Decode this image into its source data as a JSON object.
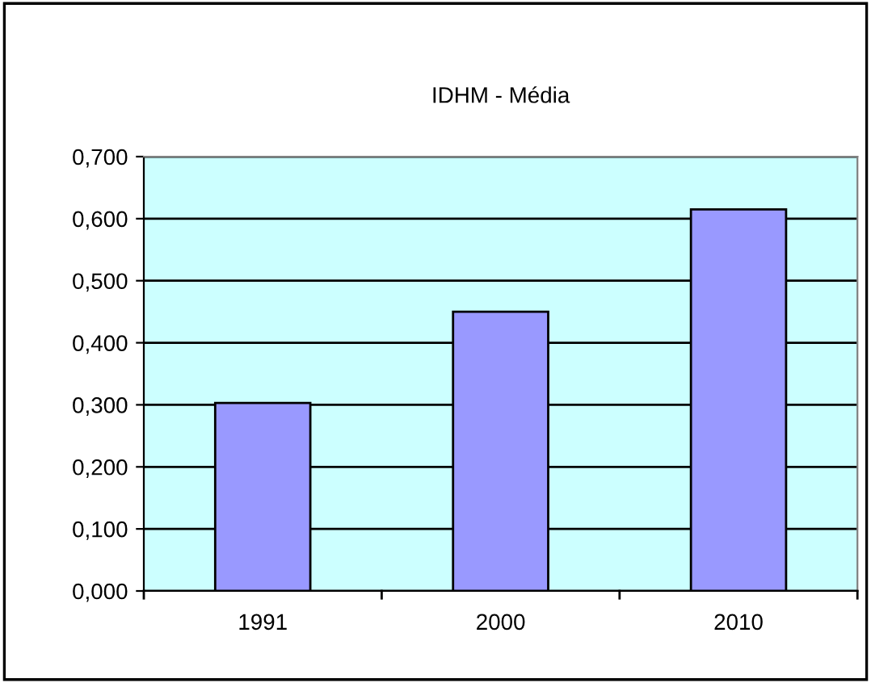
{
  "chart_data": {
    "type": "bar",
    "title": "IDHM - Média",
    "categories": [
      "1991",
      "2000",
      "2010"
    ],
    "values": [
      0.303,
      0.45,
      0.615
    ],
    "color": "#9999ff",
    "ylim": [
      0,
      0.7
    ],
    "yticks": [
      {
        "value": 0,
        "label": "0,000"
      },
      {
        "value": 0.1,
        "label": "0,100"
      },
      {
        "value": 0.2,
        "label": "0,200"
      },
      {
        "value": 0.3,
        "label": "0,300"
      },
      {
        "value": 0.4,
        "label": "0,400"
      },
      {
        "value": 0.5,
        "label": "0,500"
      },
      {
        "value": 0.6,
        "label": "0,600"
      },
      {
        "value": 0.7,
        "label": "0,700"
      }
    ],
    "grid": "y"
  }
}
